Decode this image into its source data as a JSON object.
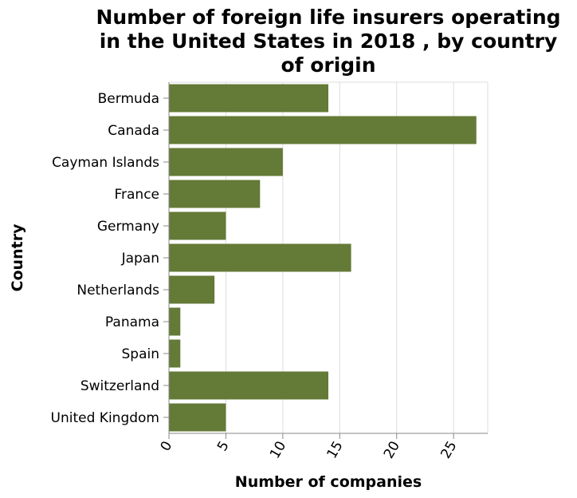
{
  "chart_data": {
    "type": "bar",
    "orientation": "horizontal",
    "title": "Number of foreign life insurers operating in the United States in 2018 , by country of origin",
    "title_lines": [
      "Number of foreign life insurers operating",
      "in the United States in 2018 , by country",
      "of origin"
    ],
    "xlabel": "Number of companies",
    "ylabel": "Country",
    "categories": [
      "Bermuda",
      "Canada",
      "Cayman Islands",
      "France",
      "Germany",
      "Japan",
      "Netherlands",
      "Panama",
      "Spain",
      "Switzerland",
      "United Kingdom"
    ],
    "values": [
      14,
      27,
      10,
      8,
      5,
      16,
      4,
      1,
      1,
      14,
      5
    ],
    "xlim": [
      0,
      28
    ],
    "xticks": [
      0,
      5,
      10,
      15,
      20,
      25
    ],
    "grid": true,
    "bar_color": "#647a37"
  }
}
